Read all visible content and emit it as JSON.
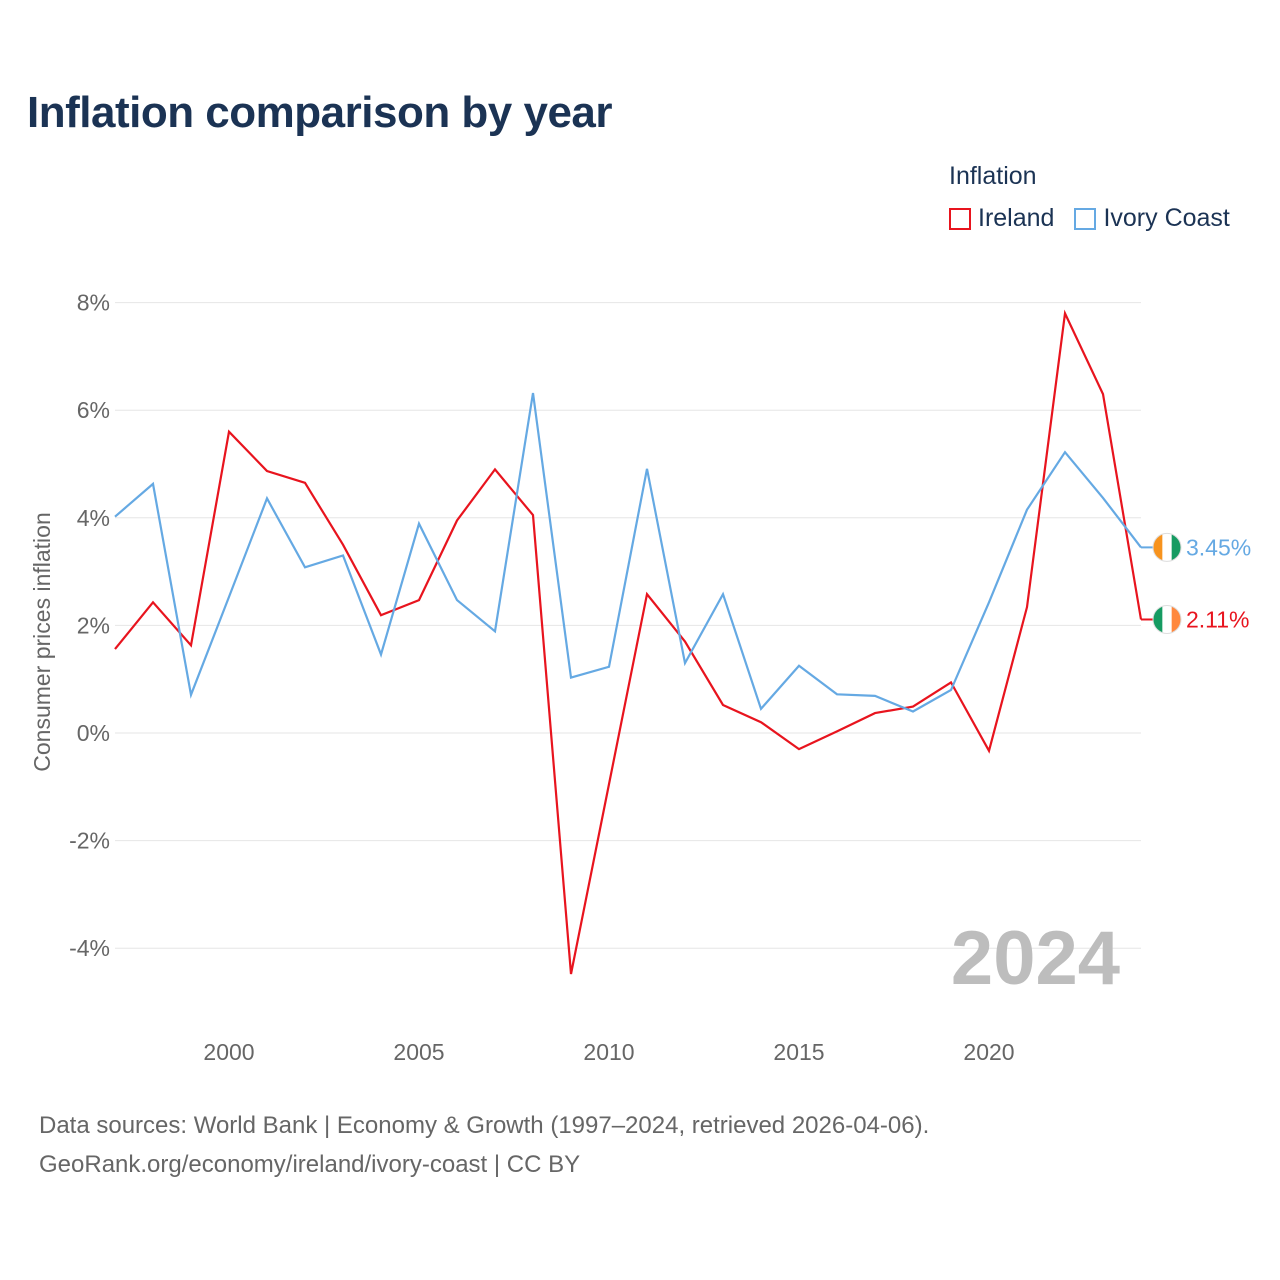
{
  "chart_data": {
    "type": "line",
    "title": "Inflation comparison by year",
    "xlabel": "",
    "ylabel": "Consumer prices inflation",
    "legend_title": "Inflation",
    "legend_position": "top-right",
    "grid": true,
    "xlim": [
      1997,
      2024
    ],
    "ylim": [
      -5,
      8.3
    ],
    "x_ticks": [
      2000,
      2005,
      2010,
      2015,
      2020
    ],
    "y_ticks": [
      {
        "value": 8,
        "label": "8%"
      },
      {
        "value": 6,
        "label": "6%"
      },
      {
        "value": 4,
        "label": "4%"
      },
      {
        "value": 2,
        "label": "2%"
      },
      {
        "value": 0,
        "label": "0%"
      },
      {
        "value": -2,
        "label": "-2%"
      },
      {
        "value": -4,
        "label": "-4%"
      }
    ],
    "x": [
      1997,
      1998,
      1999,
      2000,
      2001,
      2002,
      2003,
      2004,
      2005,
      2006,
      2007,
      2008,
      2009,
      2010,
      2011,
      2012,
      2013,
      2014,
      2015,
      2016,
      2017,
      2018,
      2019,
      2020,
      2021,
      2022,
      2023,
      2024
    ],
    "series": [
      {
        "name": "Ireland",
        "color": "#e8141e",
        "values": [
          1.56,
          2.43,
          1.63,
          5.6,
          4.87,
          4.65,
          3.5,
          2.19,
          2.47,
          3.95,
          4.9,
          4.05,
          -4.48,
          -0.95,
          2.58,
          1.7,
          0.52,
          0.2,
          -0.3,
          0.03,
          0.37,
          0.49,
          0.94,
          -0.33,
          2.34,
          7.8,
          6.3,
          2.11
        ],
        "end_label": "2.11%"
      },
      {
        "name": "Ivory Coast",
        "color": "#65a9e3",
        "values": [
          4.02,
          4.63,
          0.71,
          2.53,
          4.36,
          3.08,
          3.3,
          1.46,
          3.89,
          2.47,
          1.89,
          6.32,
          1.03,
          1.23,
          4.91,
          1.3,
          2.58,
          0.45,
          1.25,
          0.72,
          0.69,
          0.4,
          0.8,
          2.43,
          4.15,
          5.22,
          4.37,
          3.45
        ],
        "end_label": "3.45%"
      }
    ],
    "watermark": "2024"
  },
  "sources": {
    "line1": "Data sources: World Bank | Economy & Growth (1997–2024, retrieved 2026-04-06).",
    "line2": "GeoRank.org/economy/ireland/ivory-coast | CC BY"
  }
}
